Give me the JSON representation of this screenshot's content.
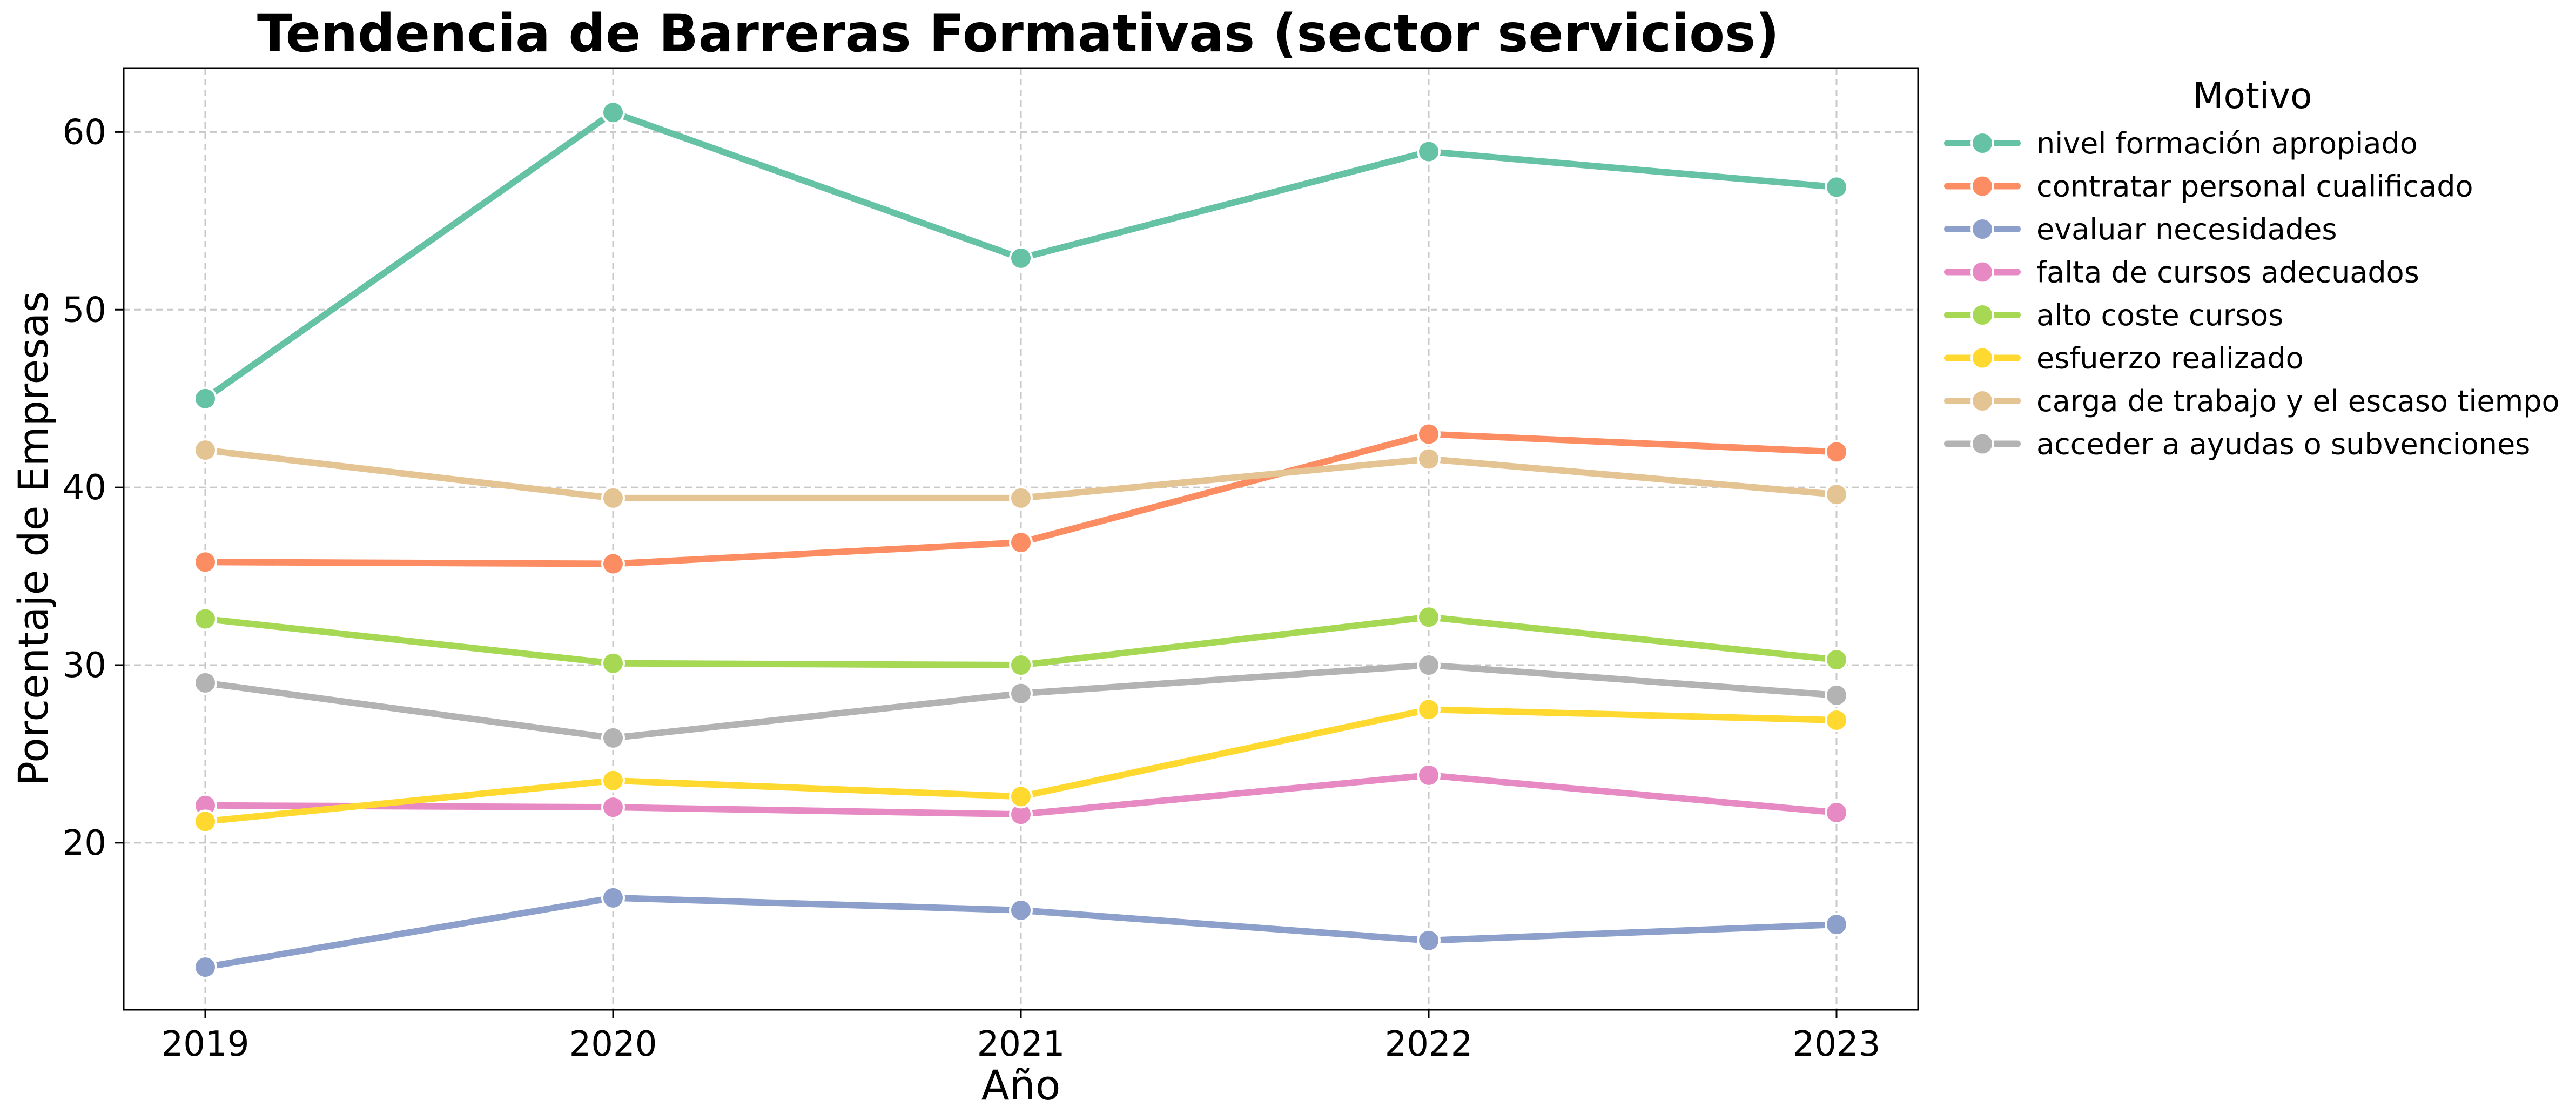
{
  "chart_data": {
    "type": "line",
    "title": "Tendencia de Barreras Formativas (sector servicios)",
    "xlabel": "Año",
    "ylabel": "Porcentaje de Empresas",
    "x": [
      "2019",
      "2020",
      "2021",
      "2022",
      "2023"
    ],
    "xlim": [
      2018.8,
      2023.2
    ],
    "ylim": [
      10.6,
      63.6
    ],
    "yticks": [
      "20",
      "30",
      "40",
      "50",
      "60"
    ],
    "grid": true,
    "legend": {
      "title": "Motivo",
      "placement": "outside-right-top"
    },
    "series": [
      {
        "name": "nivel formación apropiado",
        "color": "#66c2a5",
        "values": [
          45.0,
          61.1,
          52.9,
          58.9,
          56.9
        ]
      },
      {
        "name": "contratar personal cualificado",
        "color": "#fc8d62",
        "values": [
          35.8,
          35.7,
          36.9,
          43.0,
          42.0
        ]
      },
      {
        "name": "evaluar necesidades",
        "color": "#8da0cb",
        "values": [
          13.0,
          16.9,
          16.2,
          14.5,
          15.4
        ]
      },
      {
        "name": "falta de cursos adecuados",
        "color": "#e78ac3",
        "values": [
          22.1,
          22.0,
          21.6,
          23.8,
          21.7
        ]
      },
      {
        "name": "alto coste cursos",
        "color": "#a6d854",
        "values": [
          32.6,
          30.1,
          30.0,
          32.7,
          30.3
        ]
      },
      {
        "name": "esfuerzo realizado",
        "color": "#ffd92f",
        "values": [
          21.2,
          23.5,
          22.6,
          27.5,
          26.9
        ]
      },
      {
        "name": "carga de trabajo y el escaso tiempo",
        "color": "#e5c494",
        "values": [
          42.1,
          39.4,
          39.4,
          41.6,
          39.6
        ]
      },
      {
        "name": "acceder a ayudas o subvenciones",
        "color": "#b3b3b3",
        "values": [
          29.0,
          25.9,
          28.4,
          30.0,
          28.3
        ]
      }
    ]
  }
}
